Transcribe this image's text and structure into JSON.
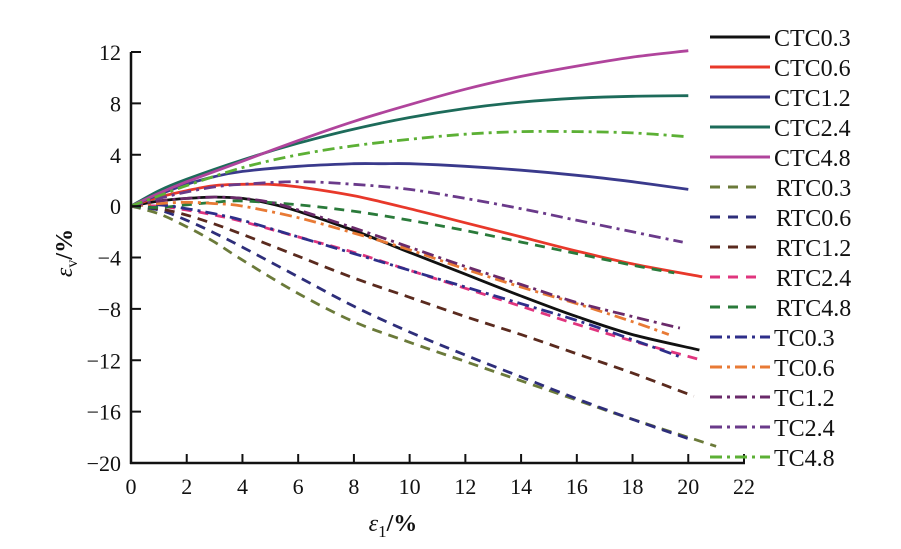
{
  "chart_data": {
    "type": "line",
    "title": "",
    "xlabel": "ε1/%",
    "xlabel_parts": {
      "symbol": "ε",
      "sub": "1",
      "unit": "/%"
    },
    "ylabel": "εv/%",
    "ylabel_parts": {
      "symbol": "ε",
      "sub": "v",
      "unit": "/%"
    },
    "xlim": [
      0,
      22
    ],
    "ylim": [
      -20,
      12
    ],
    "xticks": [
      "0",
      "2",
      "4",
      "6",
      "8",
      "10",
      "12",
      "14",
      "16",
      "18",
      "20",
      "22"
    ],
    "yticks": [
      "12",
      "8",
      "4",
      "0",
      "-4",
      "-8",
      "-12",
      "-16",
      "-20"
    ],
    "ytick_labels": [
      "12",
      "8",
      "4",
      "0",
      "−4",
      "−8",
      "−12",
      "−16",
      "−20"
    ],
    "xtick_values": [
      0,
      2,
      4,
      6,
      8,
      10,
      12,
      14,
      16,
      18,
      20,
      22
    ],
    "ytick_values": [
      12,
      8,
      4,
      0,
      -4,
      -8,
      -12,
      -16,
      -20
    ],
    "grid": false,
    "legend_position": "right",
    "series": [
      {
        "name": "CTC0.3",
        "color": "#111111",
        "dash": "solid",
        "x": [
          0,
          1,
          2,
          3,
          4,
          5,
          6,
          8,
          10,
          12,
          14,
          16,
          18,
          20.4
        ],
        "y": [
          0,
          0.4,
          0.6,
          0.7,
          0.6,
          0.2,
          -0.4,
          -1.9,
          -3.6,
          -5.3,
          -7,
          -8.6,
          -10,
          -11.2
        ]
      },
      {
        "name": "CTC0.6",
        "color": "#e8382a",
        "dash": "solid",
        "x": [
          0,
          1,
          2,
          3,
          4,
          5,
          6,
          8,
          10,
          12,
          14,
          16,
          18,
          20.5
        ],
        "y": [
          0,
          0.7,
          1.2,
          1.6,
          1.7,
          1.7,
          1.5,
          0.8,
          -0.2,
          -1.3,
          -2.4,
          -3.5,
          -4.5,
          -5.5
        ]
      },
      {
        "name": "CTC1.2",
        "color": "#3a3a8c",
        "dash": "solid",
        "x": [
          0,
          1,
          2,
          3,
          4,
          6,
          8,
          9,
          10,
          12,
          14,
          16,
          18,
          20
        ],
        "y": [
          0,
          0.9,
          1.7,
          2.3,
          2.7,
          3.1,
          3.3,
          3.3,
          3.3,
          3.1,
          2.8,
          2.4,
          1.9,
          1.3
        ]
      },
      {
        "name": "CTC2.4",
        "color": "#1d6b5a",
        "dash": "solid",
        "x": [
          0,
          1,
          2,
          4,
          6,
          8,
          10,
          12,
          14,
          16,
          18,
          20
        ],
        "y": [
          0,
          1.2,
          2.1,
          3.6,
          4.9,
          6,
          6.9,
          7.6,
          8.1,
          8.4,
          8.55,
          8.6
        ]
      },
      {
        "name": "CTC4.8",
        "color": "#b0449c",
        "dash": "solid",
        "x": [
          0,
          1,
          2,
          4,
          6,
          8,
          10,
          12,
          14,
          16,
          18,
          20
        ],
        "y": [
          0,
          1,
          1.9,
          3.5,
          5.1,
          6.6,
          7.9,
          9.1,
          10.1,
          10.9,
          11.6,
          12.1
        ]
      },
      {
        "name": "RTC0.3",
        "color": "#6b7a3a",
        "dash": "dash",
        "x": [
          0,
          1,
          2,
          3,
          4,
          6,
          8,
          10,
          12,
          14,
          16,
          18,
          21
        ],
        "y": [
          0,
          -0.6,
          -1.6,
          -2.8,
          -4.2,
          -6.8,
          -9,
          -10.6,
          -12.1,
          -13.6,
          -15.1,
          -16.6,
          -18.7
        ]
      },
      {
        "name": "RTC0.6",
        "color": "#2e2e7a",
        "dash": "dash",
        "x": [
          0,
          1,
          2,
          3,
          4,
          6,
          8,
          10,
          12,
          14,
          16,
          18,
          20
        ],
        "y": [
          0,
          -0.3,
          -1.1,
          -2.1,
          -3.2,
          -5.5,
          -7.8,
          -9.8,
          -11.6,
          -13.3,
          -15,
          -16.6,
          -18.1
        ]
      },
      {
        "name": "RTC1.2",
        "color": "#5a2a1e",
        "dash": "dash",
        "x": [
          0,
          1,
          2,
          3,
          4,
          6,
          8,
          10,
          12,
          14,
          16,
          18,
          20.2
        ],
        "y": [
          0,
          -0.2,
          -0.7,
          -1.4,
          -2.2,
          -3.9,
          -5.6,
          -7.1,
          -8.6,
          -10,
          -11.5,
          -13,
          -14.8
        ]
      },
      {
        "name": "RTC2.4",
        "color": "#e0357e",
        "dash": "dash",
        "x": [
          0,
          1,
          2,
          3,
          4,
          6,
          8,
          10,
          12,
          14,
          16,
          18,
          20.5
        ],
        "y": [
          0,
          0,
          -0.3,
          -0.7,
          -1.2,
          -2.4,
          -3.6,
          -5,
          -6.4,
          -7.8,
          -9.2,
          -10.5,
          -12
        ]
      },
      {
        "name": "RTC4.8",
        "color": "#2a7a3a",
        "dash": "dash",
        "x": [
          0,
          1,
          2,
          3,
          4,
          6,
          8,
          10,
          12,
          14,
          16,
          18,
          19.5
        ],
        "y": [
          0,
          -0.1,
          0.1,
          0.3,
          0.4,
          0.1,
          -0.4,
          -1.1,
          -1.9,
          -2.8,
          -3.7,
          -4.6,
          -5.2
        ]
      },
      {
        "name": "TC0.3",
        "color": "#2e2e8a",
        "dash": "dashdot",
        "x": [
          0,
          1,
          2,
          3,
          4,
          6,
          8,
          10,
          12,
          14,
          16,
          18,
          19.8
        ],
        "y": [
          0,
          0.1,
          -0.2,
          -0.6,
          -1.1,
          -2.4,
          -3.7,
          -5,
          -6.3,
          -7.6,
          -8.9,
          -10.4,
          -11.8
        ]
      },
      {
        "name": "TC0.6",
        "color": "#e87a35",
        "dash": "dashdot",
        "x": [
          0,
          1,
          2,
          3,
          4,
          6,
          8,
          10,
          12,
          14,
          16,
          18,
          19.3
        ],
        "y": [
          0,
          0.2,
          0.3,
          0.2,
          0,
          -0.9,
          -2.1,
          -3.4,
          -4.9,
          -6.3,
          -7.6,
          -9,
          -10
        ]
      },
      {
        "name": "TC1.2",
        "color": "#6a2a6a",
        "dash": "dashdot",
        "x": [
          0,
          1,
          2,
          3,
          4,
          5,
          6,
          8,
          10,
          12,
          14,
          16,
          18,
          19.7
        ],
        "y": [
          0,
          0.4,
          0.6,
          0.7,
          0.6,
          0.3,
          -0.3,
          -1.7,
          -3.2,
          -4.7,
          -6.1,
          -7.5,
          -8.6,
          -9.5
        ]
      },
      {
        "name": "TC2.4",
        "color": "#6a3a8a",
        "dash": "dashdot",
        "x": [
          0,
          1,
          2,
          3,
          4,
          6,
          8,
          10,
          12,
          14,
          16,
          18,
          19.8
        ],
        "y": [
          0,
          0.6,
          1.1,
          1.5,
          1.7,
          1.9,
          1.7,
          1.3,
          0.6,
          -0.2,
          -1.1,
          -2,
          -2.8
        ]
      },
      {
        "name": "TC4.8",
        "color": "#5cb035",
        "dash": "dashdot",
        "x": [
          0,
          1,
          2,
          4,
          6,
          8,
          10,
          12,
          14,
          16,
          18,
          20
        ],
        "y": [
          0,
          0.8,
          1.6,
          3,
          4,
          4.7,
          5.2,
          5.6,
          5.8,
          5.8,
          5.7,
          5.4
        ]
      }
    ]
  }
}
